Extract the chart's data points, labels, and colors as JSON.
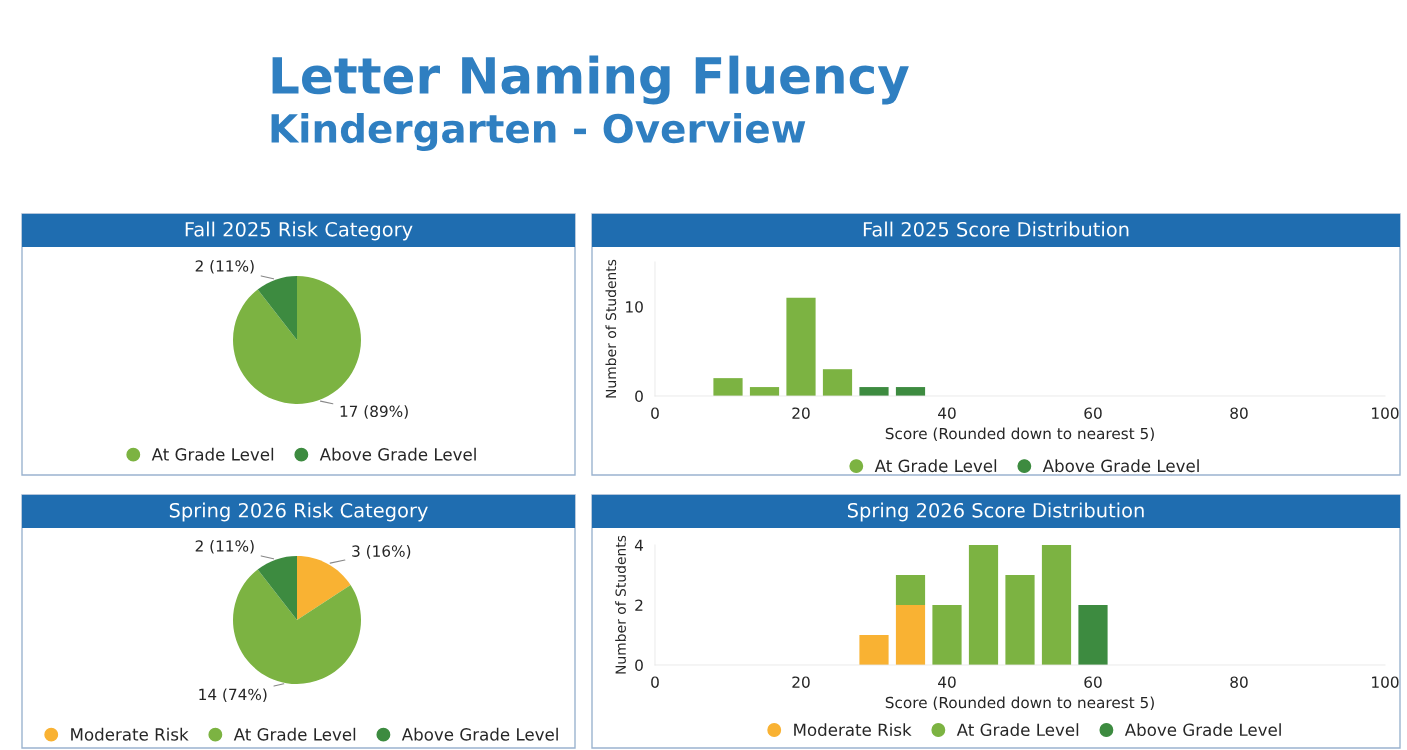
{
  "chart_data": [
    {
      "type": "pie",
      "title": "Fall 2025 Risk Category",
      "annotations": [
        "Letter Naming Fluency",
        "Kindergarten - Overview"
      ],
      "categories": [
        "At Grade Level",
        "Above Grade Level"
      ],
      "values": [
        17,
        2
      ],
      "colors": [
        "#7cb342",
        "#3d8b40"
      ],
      "value_labels": [
        "17 (89%)",
        "2 (11%)"
      ],
      "legend": "bottom"
    },
    {
      "type": "bar",
      "stacked": true,
      "title": "Fall 2025 Score Distribution",
      "xlabel": "Score (Rounded down to nearest 5)",
      "ylabel": "Number of Students",
      "x": [
        10,
        15,
        20,
        25,
        30,
        35
      ],
      "series": [
        {
          "name": "At Grade Level",
          "color": "#7cb342",
          "values": [
            2,
            1,
            11,
            3,
            null,
            null
          ]
        },
        {
          "name": "Above Grade Level",
          "color": "#3d8b40",
          "values": [
            null,
            null,
            null,
            null,
            1,
            1
          ]
        }
      ],
      "xlim": [
        0,
        100
      ],
      "xticks": [
        0,
        20,
        40,
        60,
        80,
        100
      ],
      "ylim": [
        0,
        15
      ],
      "yticks": [
        0,
        10
      ],
      "legend": "bottom"
    },
    {
      "type": "pie",
      "title": "Spring 2026 Risk Category",
      "categories": [
        "Moderate Risk",
        "At Grade Level",
        "Above Grade Level"
      ],
      "values": [
        3,
        14,
        2
      ],
      "colors": [
        "#f9b233",
        "#7cb342",
        "#3d8b40"
      ],
      "value_labels": [
        "3 (16%)",
        "14 (74%)",
        "2 (11%)"
      ],
      "legend": "bottom"
    },
    {
      "type": "bar",
      "stacked": true,
      "title": "Spring 2026 Score Distribution",
      "xlabel": "Score (Rounded down to nearest 5)",
      "ylabel": "Number of Students",
      "x": [
        30,
        35,
        40,
        45,
        50,
        55,
        60
      ],
      "series": [
        {
          "name": "Moderate Risk",
          "color": "#f9b233",
          "values": [
            1,
            2,
            null,
            null,
            null,
            null,
            null
          ]
        },
        {
          "name": "At Grade Level",
          "color": "#7cb342",
          "values": [
            null,
            1,
            2,
            4,
            3,
            4,
            null
          ]
        },
        {
          "name": "Above Grade Level",
          "color": "#3d8b40",
          "values": [
            null,
            null,
            null,
            null,
            null,
            null,
            2
          ]
        }
      ],
      "xlim": [
        0,
        100
      ],
      "xticks": [
        0,
        20,
        40,
        60,
        80,
        100
      ],
      "ylim": [
        0,
        4
      ],
      "yticks": [
        0,
        2,
        4
      ],
      "legend": "bottom"
    }
  ]
}
